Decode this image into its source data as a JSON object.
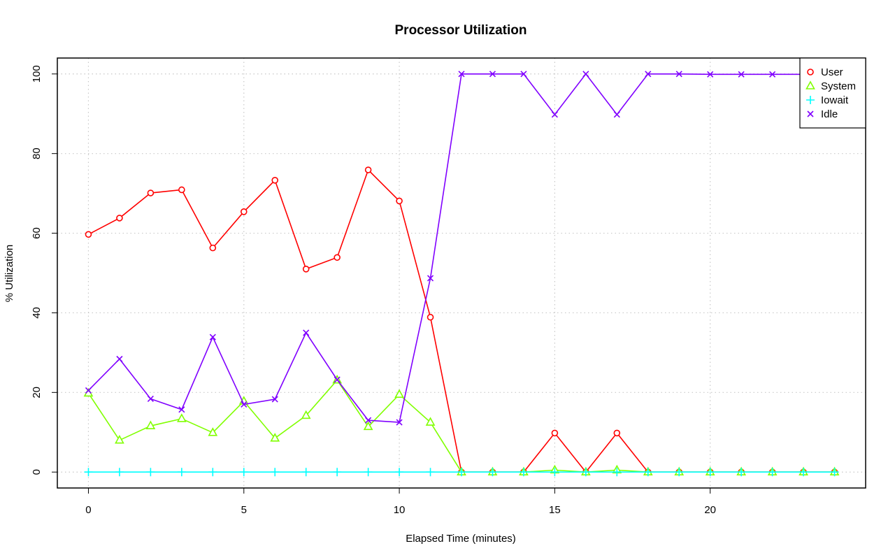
{
  "chart_data": {
    "type": "line",
    "title": "Processor Utilization",
    "xlabel": "Elapsed Time (minutes)",
    "ylabel": "% Utilization",
    "xlim": [
      -1,
      25
    ],
    "ylim": [
      -4,
      104
    ],
    "xticks": [
      0,
      5,
      10,
      15,
      20
    ],
    "yticks": [
      0,
      20,
      40,
      60,
      80,
      100
    ],
    "grid": true,
    "legend_position": "top-right",
    "x": [
      0,
      1,
      2,
      3,
      4,
      5,
      6,
      7,
      8,
      9,
      10,
      11,
      12,
      13,
      14,
      15,
      16,
      17,
      18,
      19,
      20,
      21,
      22,
      23,
      24
    ],
    "series": [
      {
        "name": "User",
        "color": "#ff0000",
        "marker": "circle",
        "values": [
          59.7,
          63.8,
          70.1,
          70.9,
          56.3,
          65.4,
          73.3,
          51.0,
          53.9,
          75.9,
          68.1,
          38.9,
          0,
          0,
          0,
          9.8,
          0,
          9.8,
          0,
          0,
          0,
          0,
          0,
          0,
          0
        ]
      },
      {
        "name": "System",
        "color": "#80ff00",
        "marker": "triangle",
        "values": [
          19.8,
          8.0,
          11.6,
          13.4,
          9.9,
          17.8,
          8.5,
          14.2,
          23.1,
          11.4,
          19.5,
          12.5,
          0,
          0,
          0,
          0.5,
          0,
          0.5,
          0,
          0,
          0,
          0,
          0,
          0,
          0
        ]
      },
      {
        "name": "Iowait",
        "color": "#00ffff",
        "marker": "plus",
        "values": [
          0,
          0,
          0,
          0,
          0,
          0,
          0,
          0,
          0,
          0,
          0,
          0,
          0,
          0,
          0,
          0,
          0,
          0,
          0,
          0,
          0,
          0,
          0,
          0,
          0
        ]
      },
      {
        "name": "Idle",
        "color": "#8000ff",
        "marker": "x",
        "values": [
          20.5,
          28.4,
          18.4,
          15.7,
          33.9,
          17.0,
          18.3,
          35.0,
          23.2,
          13.0,
          12.5,
          48.7,
          100,
          100,
          100,
          89.8,
          100,
          89.8,
          100,
          100,
          99.9,
          99.9,
          99.9,
          99.9,
          99.9
        ]
      }
    ]
  }
}
